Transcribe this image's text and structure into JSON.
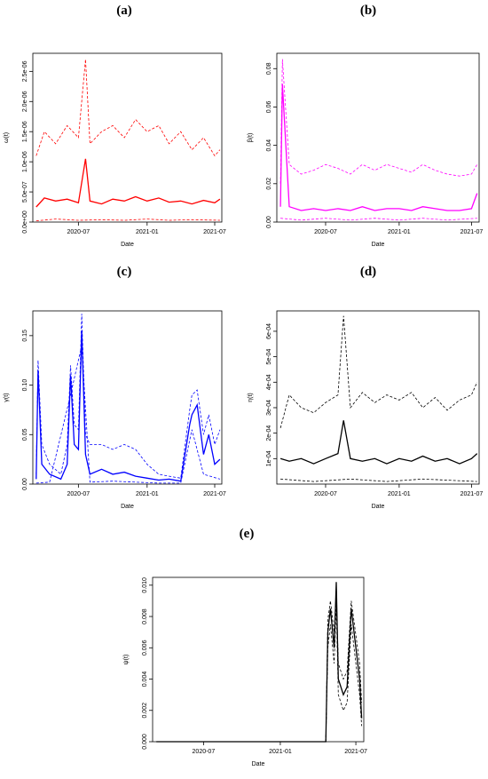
{
  "chart_data": [
    {
      "panel": "(a)",
      "type": "line",
      "xlabel": "Date",
      "ylabel": "ω(t)",
      "xlim": [
        "2020-03-01",
        "2021-07-20"
      ],
      "ylim": [
        0,
        2.8e-06
      ],
      "xticks": [
        "2020-07",
        "2021-01",
        "2021-07"
      ],
      "yticks": [
        "0.0e+00",
        "5.0e-07",
        "1.0e-06",
        "1.5e-06",
        "2.0e-06",
        "2.5e-06"
      ],
      "color": "#ff0000",
      "series": [
        {
          "style": "solid",
          "x": [
            "2020-03-10",
            "2020-04-01",
            "2020-05-01",
            "2020-06-01",
            "2020-07-01",
            "2020-07-20",
            "2020-08-01",
            "2020-09-01",
            "2020-10-01",
            "2020-11-01",
            "2020-12-01",
            "2021-01-01",
            "2021-02-01",
            "2021-03-01",
            "2021-04-01",
            "2021-05-01",
            "2021-06-01",
            "2021-07-01",
            "2021-07-15"
          ],
          "y": [
            2.5e-07,
            4e-07,
            3.5e-07,
            3.8e-07,
            3.2e-07,
            1.05e-06,
            3.5e-07,
            3e-07,
            3.8e-07,
            3.5e-07,
            4.2e-07,
            3.5e-07,
            4e-07,
            3.3e-07,
            3.5e-07,
            3e-07,
            3.6e-07,
            3.2e-07,
            3.8e-07
          ]
        },
        {
          "style": "dashed",
          "x": [
            "2020-03-10",
            "2020-04-01",
            "2020-05-01",
            "2020-06-01",
            "2020-07-01",
            "2020-07-20",
            "2020-08-01",
            "2020-09-01",
            "2020-10-01",
            "2020-11-01",
            "2020-12-01",
            "2021-01-01",
            "2021-02-01",
            "2021-03-01",
            "2021-04-01",
            "2021-05-01",
            "2021-06-01",
            "2021-07-01",
            "2021-07-15"
          ],
          "y": [
            1.1e-06,
            1.5e-06,
            1.3e-06,
            1.6e-06,
            1.4e-06,
            2.7e-06,
            1.3e-06,
            1.5e-06,
            1.6e-06,
            1.4e-06,
            1.7e-06,
            1.5e-06,
            1.6e-06,
            1.3e-06,
            1.5e-06,
            1.2e-06,
            1.4e-06,
            1.1e-06,
            1.2e-06
          ]
        },
        {
          "style": "dashed",
          "x": [
            "2020-03-10",
            "2020-05-01",
            "2020-07-01",
            "2020-09-01",
            "2020-11-01",
            "2021-01-01",
            "2021-03-01",
            "2021-05-01",
            "2021-07-15"
          ],
          "y": [
            2e-08,
            5e-08,
            3e-08,
            4e-08,
            3e-08,
            5e-08,
            3e-08,
            4e-08,
            3e-08
          ]
        }
      ]
    },
    {
      "panel": "(b)",
      "type": "line",
      "xlabel": "Date",
      "ylabel": "β(t)",
      "xlim": [
        "2020-03-01",
        "2021-07-20"
      ],
      "ylim": [
        0,
        0.088
      ],
      "xticks": [
        "2020-07",
        "2021-01",
        "2021-07"
      ],
      "yticks": [
        "0.00",
        "0.02",
        "0.04",
        "0.06",
        "0.08"
      ],
      "color": "#ff00ff",
      "series": [
        {
          "style": "solid",
          "x": [
            "2020-03-10",
            "2020-03-15",
            "2020-04-01",
            "2020-05-01",
            "2020-06-01",
            "2020-07-01",
            "2020-08-01",
            "2020-09-01",
            "2020-10-01",
            "2020-11-01",
            "2020-12-01",
            "2021-01-01",
            "2021-02-01",
            "2021-03-01",
            "2021-04-01",
            "2021-05-01",
            "2021-06-01",
            "2021-07-01",
            "2021-07-15"
          ],
          "y": [
            0.008,
            0.072,
            0.008,
            0.006,
            0.007,
            0.006,
            0.007,
            0.006,
            0.008,
            0.006,
            0.007,
            0.007,
            0.006,
            0.008,
            0.007,
            0.006,
            0.006,
            0.007,
            0.015
          ]
        },
        {
          "style": "dashed",
          "x": [
            "2020-03-10",
            "2020-03-15",
            "2020-04-01",
            "2020-05-01",
            "2020-06-01",
            "2020-07-01",
            "2020-08-01",
            "2020-09-01",
            "2020-10-01",
            "2020-11-01",
            "2020-12-01",
            "2021-01-01",
            "2021-02-01",
            "2021-03-01",
            "2021-04-01",
            "2021-05-01",
            "2021-06-01",
            "2021-07-01",
            "2021-07-15"
          ],
          "y": [
            0.02,
            0.085,
            0.03,
            0.025,
            0.027,
            0.03,
            0.028,
            0.025,
            0.03,
            0.027,
            0.03,
            0.028,
            0.026,
            0.03,
            0.027,
            0.025,
            0.024,
            0.025,
            0.03
          ]
        },
        {
          "style": "dashed",
          "x": [
            "2020-03-10",
            "2020-05-01",
            "2020-07-01",
            "2020-09-01",
            "2020-11-01",
            "2021-01-01",
            "2021-03-01",
            "2021-05-01",
            "2021-07-15"
          ],
          "y": [
            0.002,
            0.001,
            0.002,
            0.001,
            0.002,
            0.001,
            0.002,
            0.001,
            0.002
          ]
        }
      ]
    },
    {
      "panel": "(c)",
      "type": "line",
      "xlabel": "Date",
      "ylabel": "γ(t)",
      "xlim": [
        "2020-03-01",
        "2021-07-20"
      ],
      "ylim": [
        0,
        0.175
      ],
      "xticks": [
        "2020-07",
        "2021-01",
        "2021-07"
      ],
      "yticks": [
        "0.00",
        "0.05",
        "0.10",
        "0.15"
      ],
      "color": "#0000ff",
      "series": [
        {
          "style": "solid",
          "x": [
            "2020-03-10",
            "2020-03-15",
            "2020-03-25",
            "2020-04-15",
            "2020-05-15",
            "2020-06-01",
            "2020-06-10",
            "2020-06-20",
            "2020-07-01",
            "2020-07-10",
            "2020-07-20",
            "2020-08-01",
            "2020-09-01",
            "2020-10-01",
            "2020-11-01",
            "2020-12-01",
            "2021-01-01",
            "2021-02-01",
            "2021-03-01",
            "2021-04-01",
            "2021-04-25",
            "2021-05-01",
            "2021-05-15",
            "2021-06-01",
            "2021-06-15",
            "2021-07-01",
            "2021-07-15"
          ],
          "y": [
            0.005,
            0.115,
            0.02,
            0.01,
            0.005,
            0.02,
            0.11,
            0.04,
            0.035,
            0.155,
            0.03,
            0.01,
            0.015,
            0.01,
            0.012,
            0.008,
            0.006,
            0.004,
            0.005,
            0.003,
            0.06,
            0.07,
            0.08,
            0.03,
            0.05,
            0.02,
            0.025
          ]
        },
        {
          "style": "dashed",
          "x": [
            "2020-03-10",
            "2020-03-15",
            "2020-03-25",
            "2020-04-15",
            "2020-05-15",
            "2020-06-01",
            "2020-06-10",
            "2020-06-20",
            "2020-07-01",
            "2020-07-10",
            "2020-07-20",
            "2020-08-01",
            "2020-09-01",
            "2020-10-01",
            "2020-11-01",
            "2020-12-01",
            "2021-01-01",
            "2021-02-01",
            "2021-03-01",
            "2021-04-01",
            "2021-04-25",
            "2021-05-01",
            "2021-05-15",
            "2021-06-01",
            "2021-06-15",
            "2021-07-01",
            "2021-07-15"
          ],
          "y": [
            0.01,
            0.125,
            0.04,
            0.02,
            0.01,
            0.04,
            0.12,
            0.06,
            0.055,
            0.172,
            0.05,
            0.04,
            0.04,
            0.035,
            0.04,
            0.035,
            0.02,
            0.01,
            0.008,
            0.006,
            0.075,
            0.09,
            0.095,
            0.05,
            0.07,
            0.04,
            0.055
          ]
        },
        {
          "style": "dashed",
          "x": [
            "2020-03-10",
            "2020-04-15",
            "2020-06-10",
            "2020-07-10",
            "2020-08-01",
            "2020-10-01",
            "2020-12-01",
            "2021-02-01",
            "2021-04-01",
            "2021-05-01",
            "2021-06-01",
            "2021-07-15"
          ],
          "y": [
            0.001,
            0.002,
            0.09,
            0.14,
            0.002,
            0.003,
            0.002,
            0.001,
            0.001,
            0.055,
            0.01,
            0.005
          ]
        }
      ]
    },
    {
      "panel": "(d)",
      "type": "line",
      "xlabel": "Date",
      "ylabel": "η(t)",
      "xlim": [
        "2020-03-01",
        "2021-07-20"
      ],
      "ylim": [
        0,
        0.00068
      ],
      "xticks": [
        "2020-07",
        "2021-01",
        "2021-07"
      ],
      "yticks": [
        "1e-04",
        "2e-04",
        "3e-04",
        "4e-04",
        "5e-04",
        "6e-04"
      ],
      "color": "#000000",
      "series": [
        {
          "style": "solid",
          "x": [
            "2020-03-10",
            "2020-04-01",
            "2020-05-01",
            "2020-06-01",
            "2020-07-01",
            "2020-08-01",
            "2020-08-15",
            "2020-09-01",
            "2020-10-01",
            "2020-11-01",
            "2020-12-01",
            "2021-01-01",
            "2021-02-01",
            "2021-03-01",
            "2021-04-01",
            "2021-05-01",
            "2021-06-01",
            "2021-07-01",
            "2021-07-15"
          ],
          "y": [
            0.0001,
            9e-05,
            0.0001,
            8e-05,
            0.0001,
            0.00012,
            0.00025,
            0.0001,
            9e-05,
            0.0001,
            8e-05,
            0.0001,
            9e-05,
            0.00011,
            9e-05,
            0.0001,
            8e-05,
            0.0001,
            0.00012
          ]
        },
        {
          "style": "dashed",
          "x": [
            "2020-03-10",
            "2020-04-01",
            "2020-05-01",
            "2020-06-01",
            "2020-07-01",
            "2020-08-01",
            "2020-08-15",
            "2020-09-01",
            "2020-10-01",
            "2020-11-01",
            "2020-12-01",
            "2021-01-01",
            "2021-02-01",
            "2021-03-01",
            "2021-04-01",
            "2021-05-01",
            "2021-06-01",
            "2021-07-01",
            "2021-07-15"
          ],
          "y": [
            0.00022,
            0.00035,
            0.0003,
            0.00028,
            0.00032,
            0.00035,
            0.00066,
            0.0003,
            0.00036,
            0.00032,
            0.00035,
            0.00033,
            0.00036,
            0.0003,
            0.00034,
            0.00029,
            0.00033,
            0.00035,
            0.0004
          ]
        },
        {
          "style": "dashed",
          "x": [
            "2020-03-10",
            "2020-06-01",
            "2020-09-01",
            "2020-12-01",
            "2021-03-01",
            "2021-07-15"
          ],
          "y": [
            2e-05,
            1e-05,
            2e-05,
            1e-05,
            2e-05,
            1e-05
          ]
        }
      ]
    },
    {
      "panel": "(e)",
      "type": "line",
      "xlabel": "Date",
      "ylabel": "ψ(t)",
      "xlim": [
        "2020-03-01",
        "2021-07-20"
      ],
      "ylim": [
        0,
        0.0105
      ],
      "xticks": [
        "2020-07",
        "2021-01",
        "2021-07"
      ],
      "yticks": [
        "0.000",
        "0.002",
        "0.004",
        "0.006",
        "0.008",
        "0.010"
      ],
      "color": "#000000",
      "series": [
        {
          "style": "solid",
          "x": [
            "2020-03-10",
            "2021-04-20",
            "2021-04-25",
            "2021-05-01",
            "2021-05-10",
            "2021-05-15",
            "2021-05-20",
            "2021-06-01",
            "2021-06-10",
            "2021-06-20",
            "2021-07-01",
            "2021-07-10",
            "2021-07-15"
          ],
          "y": [
            0,
            0,
            0.007,
            0.0085,
            0.006,
            0.0102,
            0.004,
            0.003,
            0.0035,
            0.0085,
            0.006,
            0.004,
            0.0015
          ]
        },
        {
          "style": "dashed",
          "x": [
            "2021-04-20",
            "2021-04-25",
            "2021-05-01",
            "2021-05-10",
            "2021-05-15",
            "2021-05-20",
            "2021-06-01",
            "2021-06-10",
            "2021-06-20",
            "2021-07-01",
            "2021-07-10",
            "2021-07-15"
          ],
          "y": [
            0,
            0.0078,
            0.009,
            0.007,
            0.0095,
            0.005,
            0.004,
            0.0045,
            0.009,
            0.0068,
            0.005,
            0.0025
          ]
        },
        {
          "style": "dashed",
          "x": [
            "2021-04-20",
            "2021-04-25",
            "2021-05-01",
            "2021-05-10",
            "2021-05-15",
            "2021-05-20",
            "2021-06-01",
            "2021-06-10",
            "2021-06-20",
            "2021-07-01",
            "2021-07-10",
            "2021-07-15"
          ],
          "y": [
            0,
            0.006,
            0.0075,
            0.005,
            0.0088,
            0.003,
            0.002,
            0.0025,
            0.0075,
            0.005,
            0.003,
            0.001
          ]
        }
      ]
    }
  ]
}
